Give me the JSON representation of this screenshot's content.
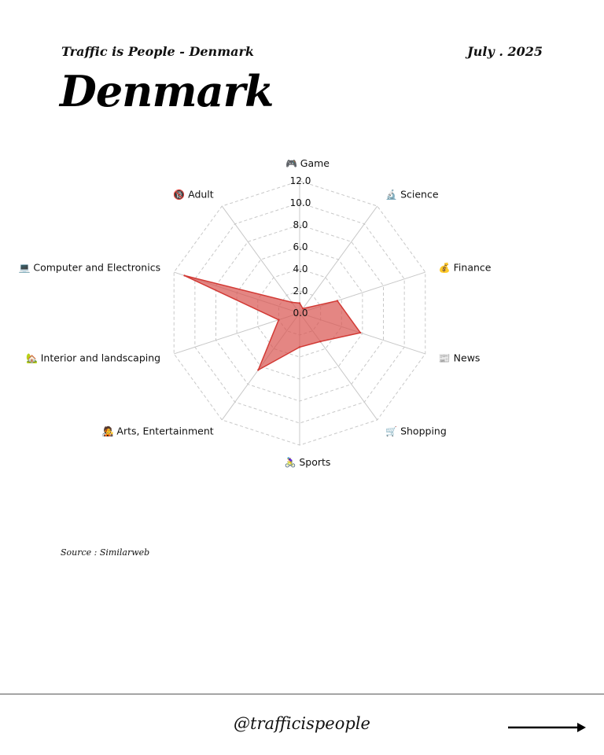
{
  "header": {
    "subtitle": "Traffic is People - Denmark",
    "date": "July . 2025",
    "title": "Denmark"
  },
  "chart_data": {
    "type": "radar",
    "title": "Denmark",
    "categories": [
      {
        "label": "Game",
        "icon": "🎮"
      },
      {
        "label": "Science",
        "icon": "🔬"
      },
      {
        "label": "Finance",
        "icon": "💰"
      },
      {
        "label": "News",
        "icon": "📰"
      },
      {
        "label": "Shopping",
        "icon": "🛒"
      },
      {
        "label": "Sports",
        "icon": "🚴‍♀️"
      },
      {
        "label": "Arts, Entertainment",
        "icon": "🧑‍🎤"
      },
      {
        "label": "Interior and landscaping",
        "icon": "🏡"
      },
      {
        "label": "Computer and Electronics",
        "icon": "💻"
      },
      {
        "label": "Adult",
        "icon": "🔞"
      }
    ],
    "series": [
      {
        "name": "Denmark",
        "color": "#d9534f",
        "values": [
          0.9,
          0.5,
          3.6,
          5.8,
          3.2,
          3.1,
          6.4,
          2.0,
          11.0,
          1.2
        ]
      }
    ],
    "rlim": [
      0,
      12
    ],
    "ticks": [
      "0.0",
      "2.0",
      "4.0",
      "6.0",
      "8.0",
      "10.0",
      "12.0"
    ],
    "grid": "dashed"
  },
  "footer": {
    "source": "Source : Similarweb",
    "handle": "@trafficispeople"
  }
}
